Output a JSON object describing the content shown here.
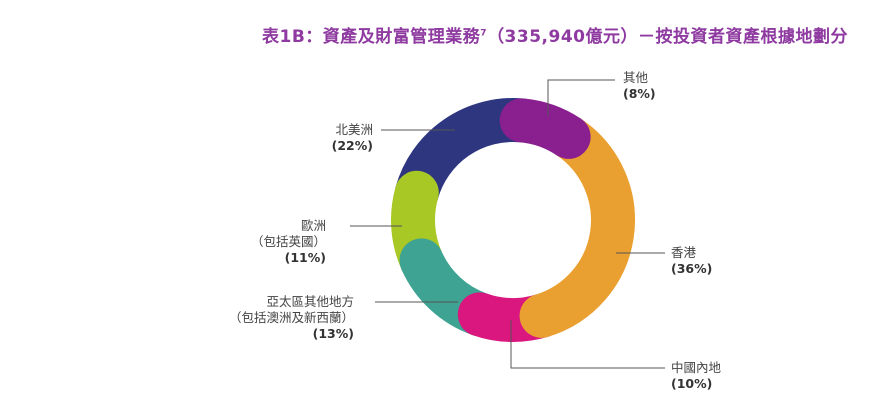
{
  "title": {
    "main": "表1B：資產及財富管理業務",
    "sup": "7",
    "rest": "（335,940億元）－按投資者資產根據地劃分"
  },
  "chart_data": {
    "type": "pie",
    "donut": true,
    "title": "表1B：資產及財富管理業務7（335,940億元）－按投資者資產根據地劃分",
    "slices": [
      {
        "key": "other",
        "label": "其他",
        "sublabel": "",
        "value": 8,
        "pct_label": "(8%)",
        "color": "#8a1f8f"
      },
      {
        "key": "hk",
        "label": "香港",
        "sublabel": "",
        "value": 36,
        "pct_label": "(36%)",
        "color": "#eaa030"
      },
      {
        "key": "china",
        "label": "中國內地",
        "sublabel": "",
        "value": 10,
        "pct_label": "(10%)",
        "color": "#d9177f"
      },
      {
        "key": "apac",
        "label": "亞太區其他地方",
        "sublabel": "（包括澳洲及新西蘭）",
        "value": 13,
        "pct_label": "(13%)",
        "color": "#3ea393"
      },
      {
        "key": "europe",
        "label": "歐洲",
        "sublabel": "（包括英國）",
        "value": 11,
        "pct_label": "(11%)",
        "color": "#a8c826"
      },
      {
        "key": "na",
        "label": "北美洲",
        "sublabel": "",
        "value": 22,
        "pct_label": "(22%)",
        "color": "#2e3680"
      }
    ]
  }
}
